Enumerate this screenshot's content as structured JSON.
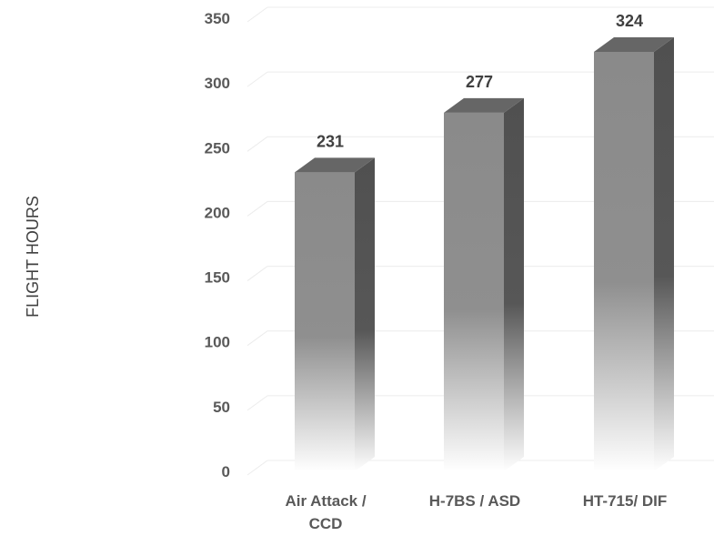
{
  "chart_data": {
    "type": "bar",
    "categories": [
      [
        "Air Attack /",
        "CCD"
      ],
      [
        "H-7BS / ASD"
      ],
      [
        "HT-715/ DIF"
      ]
    ],
    "values": [
      231,
      277,
      324
    ],
    "ylabel": "FLIGHT HOURS",
    "ylim": [
      0,
      350
    ],
    "yticks": [
      "0",
      "50",
      "100",
      "150",
      "200",
      "250",
      "300",
      "350"
    ],
    "data_labels": [
      "231",
      "277",
      "324"
    ],
    "grid": true,
    "style": "3d-column",
    "colors": {
      "front": "#8a8a8a",
      "side": "#555555",
      "top": "#666666",
      "grid": "#ececec"
    }
  }
}
